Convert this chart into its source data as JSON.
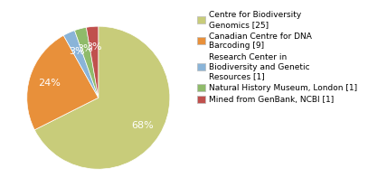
{
  "labels": [
    "Centre for Biodiversity\nGenomics [25]",
    "Canadian Centre for DNA\nBarcoding [9]",
    "Research Center in\nBiodiversity and Genetic\nResources [1]",
    "Natural History Museum, London [1]",
    "Mined from GenBank, NCBI [1]"
  ],
  "values": [
    25,
    9,
    1,
    1,
    1
  ],
  "colors": [
    "#c8cc7a",
    "#e8903a",
    "#8ab4d8",
    "#8fbb6a",
    "#c0504d"
  ],
  "background_color": "#ffffff",
  "text_color": "#ffffff",
  "fontsize": 8.0,
  "legend_fontsize": 6.5
}
